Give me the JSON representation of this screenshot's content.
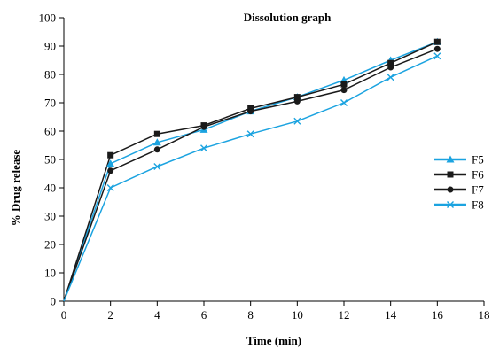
{
  "chart_data": {
    "type": "line",
    "title": "Dissolution graph",
    "xlabel": "Time (min)",
    "ylabel": "% Drug release",
    "xlim": [
      0,
      18
    ],
    "ylim": [
      0,
      100
    ],
    "xticks": [
      0,
      2,
      4,
      6,
      8,
      10,
      12,
      14,
      16,
      18
    ],
    "yticks": [
      0,
      10,
      20,
      30,
      40,
      50,
      60,
      70,
      80,
      90,
      100
    ],
    "grid": false,
    "legend_position": "right",
    "series": [
      {
        "name": "F5",
        "color": "#1ba3e0",
        "marker": "triangle",
        "x": [
          0,
          2,
          4,
          6,
          8,
          10,
          12,
          14,
          16
        ],
        "y": [
          0,
          48.5,
          56,
          60.5,
          67,
          72,
          78,
          85,
          91.5
        ]
      },
      {
        "name": "F6",
        "color": "#1a1a1a",
        "marker": "square",
        "x": [
          0,
          2,
          4,
          6,
          8,
          10,
          12,
          14,
          16
        ],
        "y": [
          0,
          51.5,
          59,
          62,
          68,
          72,
          76.5,
          84,
          91.5
        ]
      },
      {
        "name": "F7",
        "color": "#1a1a1a",
        "marker": "circle",
        "x": [
          0,
          2,
          4,
          6,
          8,
          10,
          12,
          14,
          16
        ],
        "y": [
          0,
          46,
          53.5,
          61.5,
          67,
          70.5,
          74.5,
          82.5,
          89
        ]
      },
      {
        "name": "F8",
        "color": "#1ba3e0",
        "marker": "cross",
        "x": [
          0,
          2,
          4,
          6,
          8,
          10,
          12,
          14,
          16
        ],
        "y": [
          0,
          40,
          47.5,
          54,
          59,
          63.5,
          70,
          79,
          86.5
        ]
      }
    ]
  }
}
